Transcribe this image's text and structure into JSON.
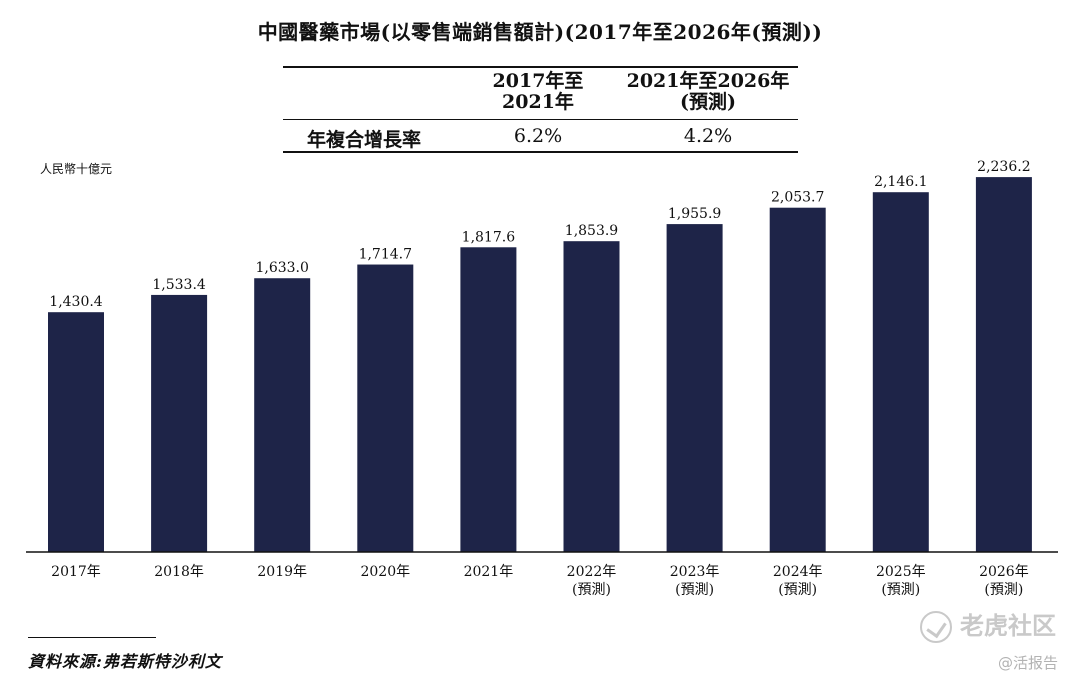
{
  "title": "中國醫藥市場(以零售端銷售額計)(2017年至2026年(預測))",
  "cagr_table": {
    "col1_line1": "2017年至",
    "col1_line2": "2021年",
    "col2_line1": "2021年至2026年",
    "col2_line2": "(預測)",
    "row_label": "年複合增長率",
    "col1_value": "6.2%",
    "col2_value": "4.2%"
  },
  "source": "資料來源:弗若斯特沙利文",
  "watermark": {
    "brand": "老虎社区",
    "account": "@活报告"
  },
  "colors": {
    "bar": "#1e2448",
    "axis": "#111111"
  },
  "chart_data": {
    "type": "bar",
    "title": "中國醫藥市場(以零售端銷售額計)(2017年至2026年(預測))",
    "ylabel": "人民幣十億元",
    "xlabel": "",
    "ylim": [
      0,
      2500
    ],
    "grid": false,
    "legend": "none",
    "categories": [
      "2017年",
      "2018年",
      "2019年",
      "2020年",
      "2021年",
      "2022年",
      "2023年",
      "2024年",
      "2025年",
      "2026年"
    ],
    "category_notes": [
      "",
      "",
      "",
      "",
      "",
      "(預測)",
      "(預測)",
      "(預測)",
      "(預測)",
      "(預測)"
    ],
    "values": [
      1430.4,
      1533.4,
      1633.0,
      1714.7,
      1817.6,
      1853.9,
      1955.9,
      2053.7,
      2146.1,
      2236.2
    ],
    "value_labels": [
      "1,430.4",
      "1,533.4",
      "1,633.0",
      "1,714.7",
      "1,817.6",
      "1,853.9",
      "1,955.9",
      "2,053.7",
      "2,146.1",
      "2,236.2"
    ]
  }
}
